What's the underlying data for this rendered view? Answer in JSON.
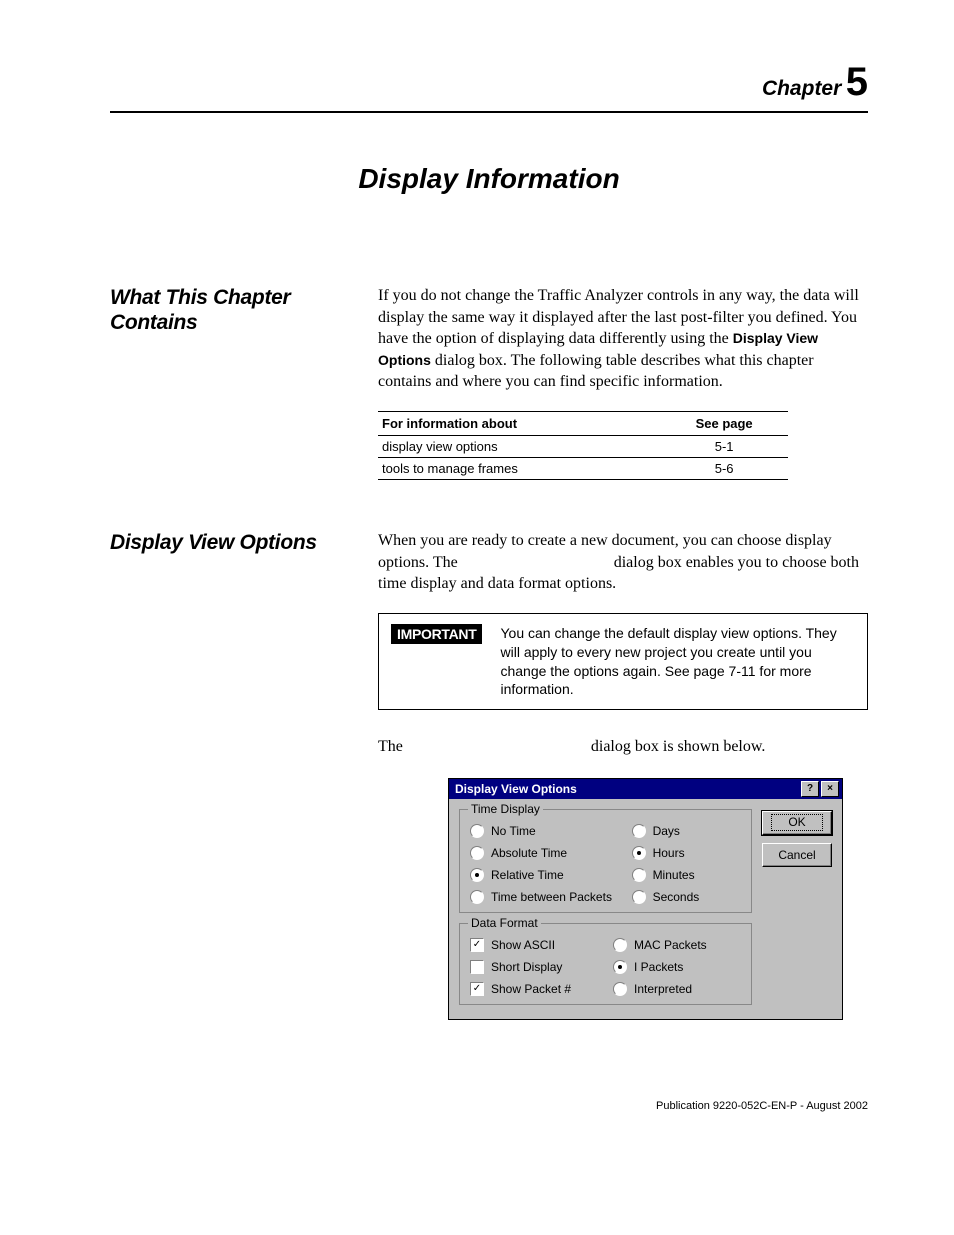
{
  "chapter": {
    "word": "Chapter",
    "number": "5"
  },
  "main_title": "Display Information",
  "section1": {
    "heading": "What This Chapter Contains",
    "para_pre": "If you do not change the Traffic Analyzer controls in any way, the data will display the same way it displayed after the last post-filter you defined. You have the option of displaying data differently using the ",
    "para_bold": "Display View Options",
    "para_post": " dialog box. The following table describes what this chapter contains and where you can find specific information.",
    "table": {
      "col1": "For information about",
      "col2": "See page",
      "rows": [
        {
          "c1": "display view options",
          "c2": "5-1"
        },
        {
          "c1": "tools to manage frames",
          "c2": "5-6"
        }
      ]
    }
  },
  "section2": {
    "heading": "Display View Options",
    "para1": "When you are ready to create a new document, you can choose display options. The                                       dialog box enables you to choose both time display and data format options.",
    "important_label": "IMPORTANT",
    "important_text": "You can change the default display view options. They will apply to every new project you create until you change the options again. See page 7-11 for more information.",
    "para2": "The                                               dialog box is shown below."
  },
  "dialog": {
    "title": "Display View Options",
    "help": "?",
    "close": "×",
    "ok": "OK",
    "cancel": "Cancel",
    "group_time": {
      "legend": "Time Display",
      "left": [
        {
          "label": "No Time",
          "checked": false
        },
        {
          "label": "Absolute Time",
          "checked": false
        },
        {
          "label": "Relative Time",
          "checked": true
        },
        {
          "label": "Time between Packets",
          "checked": false
        }
      ],
      "right": [
        {
          "label": "Days",
          "checked": false
        },
        {
          "label": "Hours",
          "checked": true
        },
        {
          "label": "Minutes",
          "checked": false
        },
        {
          "label": "Seconds",
          "checked": false
        }
      ]
    },
    "group_data": {
      "legend": "Data Format",
      "left": [
        {
          "label": "Show ASCII",
          "checked": true
        },
        {
          "label": "Short Display",
          "checked": false
        },
        {
          "label": "Show Packet #",
          "checked": true
        }
      ],
      "right": [
        {
          "label": "MAC Packets",
          "checked": false
        },
        {
          "label": "I Packets",
          "checked": true
        },
        {
          "label": "Interpreted",
          "checked": false
        }
      ]
    }
  },
  "footer": "Publication 9220-052C-EN-P - August 2002"
}
